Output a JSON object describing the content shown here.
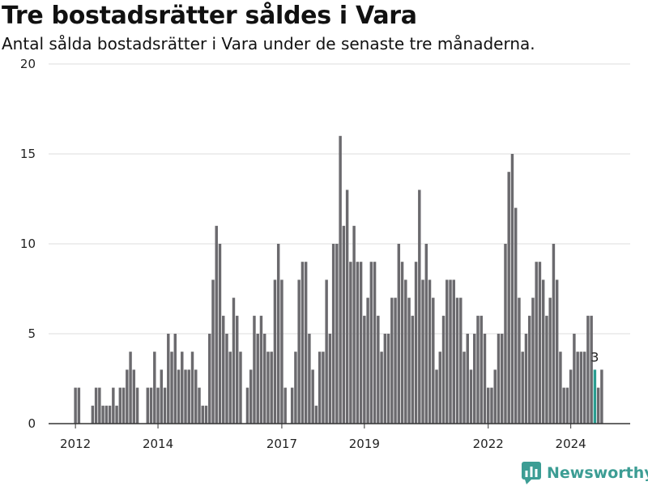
{
  "title": "Tre bostadsrätter såldes i Vara",
  "subtitle": "Antal sålda bostadsrätter i Vara under de senaste tre månaderna.",
  "brand": {
    "name": "Newsworthy",
    "color": "#3c9d94",
    "icon": "bar-chart-logo-icon"
  },
  "colors": {
    "bar": "#6b6a6e",
    "highlight": "#2a9d90",
    "grid": "#dcdcdc",
    "axis": "#333333"
  },
  "chart_data": {
    "type": "bar",
    "title": "Tre bostadsrätter såldes i Vara",
    "subtitle": "Antal sålda bostadsrätter i Vara under de senaste tre månaderna.",
    "xlabel": "",
    "ylabel": "",
    "ylim": [
      0,
      20
    ],
    "yticks": [
      0,
      5,
      10,
      15,
      20
    ],
    "xticks": [
      {
        "label": "2012",
        "date": "2012-01"
      },
      {
        "label": "2014",
        "date": "2014-01"
      },
      {
        "label": "2017",
        "date": "2017-01"
      },
      {
        "label": "2019",
        "date": "2019-01"
      },
      {
        "label": "2022",
        "date": "2022-01"
      },
      {
        "label": "2024",
        "date": "2024-01"
      }
    ],
    "grid": true,
    "start": "2012-01",
    "end": "2024-08",
    "values": [
      2,
      2,
      0,
      0,
      0,
      1,
      2,
      2,
      1,
      1,
      1,
      2,
      1,
      2,
      2,
      3,
      4,
      3,
      2,
      0,
      0,
      2,
      2,
      4,
      2,
      3,
      2,
      5,
      4,
      5,
      3,
      4,
      3,
      3,
      4,
      3,
      2,
      1,
      1,
      5,
      8,
      11,
      10,
      6,
      5,
      4,
      7,
      6,
      4,
      0,
      2,
      3,
      6,
      5,
      6,
      5,
      4,
      4,
      8,
      10,
      8,
      2,
      0,
      2,
      4,
      8,
      9,
      9,
      5,
      3,
      1,
      4,
      4,
      8,
      5,
      10,
      10,
      16,
      11,
      13,
      9,
      11,
      9,
      9,
      6,
      7,
      9,
      9,
      6,
      4,
      5,
      5,
      7,
      7,
      10,
      9,
      8,
      7,
      6,
      9,
      13,
      8,
      10,
      8,
      7,
      3,
      4,
      6,
      8,
      8,
      8,
      7,
      7,
      4,
      5,
      3,
      5,
      6,
      6,
      5,
      2,
      2,
      3,
      5,
      5,
      10,
      14,
      15,
      12,
      7,
      4,
      5,
      6,
      7,
      9,
      9,
      8,
      6,
      7,
      10,
      8,
      4,
      2,
      2,
      3,
      5,
      4,
      4,
      4,
      6,
      6,
      3,
      2,
      3
    ],
    "highlight": {
      "date": "2024-08",
      "value": 3,
      "label": "3"
    }
  }
}
